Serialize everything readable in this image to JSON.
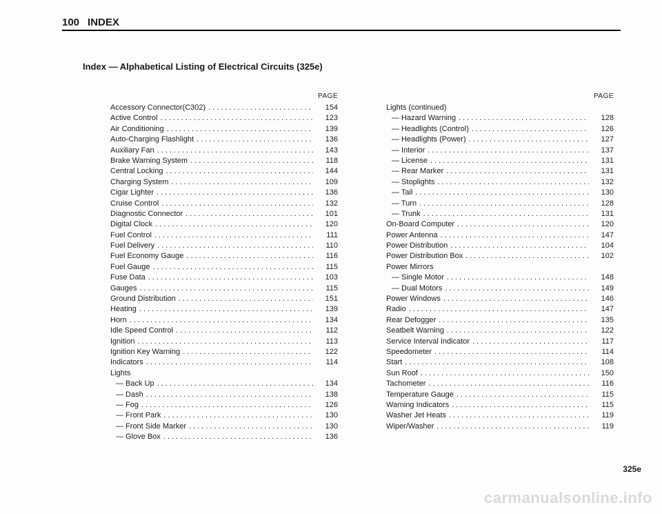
{
  "header": {
    "pageNumber": "100",
    "sectionTitle": "INDEX"
  },
  "subtitle": "Index — Alphabetical Listing of Electrical Circuits (325e)",
  "columnHeader": "PAGE",
  "leftColumn": [
    {
      "label": "Accessory Connector(C302)",
      "page": "154"
    },
    {
      "label": "Active Control",
      "page": "123"
    },
    {
      "label": "Air Conditioning",
      "page": "139"
    },
    {
      "label": "Auto-Charging Flashlight",
      "page": "136"
    },
    {
      "label": "Auxiliary Fan",
      "page": "143"
    },
    {
      "label": "Brake Warning System",
      "page": "118"
    },
    {
      "label": "Central Locking",
      "page": "144"
    },
    {
      "label": "Charging System",
      "page": "109"
    },
    {
      "label": "Cigar Lighter",
      "page": "136"
    },
    {
      "label": "Cruise Control",
      "page": "132"
    },
    {
      "label": "Diagnostic Connector",
      "page": "101"
    },
    {
      "label": "Digital Clock",
      "page": "120"
    },
    {
      "label": "Fuel Control",
      "page": "111"
    },
    {
      "label": "Fuel Delivery",
      "page": "110"
    },
    {
      "label": "Fuel Economy Gauge",
      "page": "116"
    },
    {
      "label": "Fuel Gauge",
      "page": "115"
    },
    {
      "label": "Fuse Data",
      "page": "103"
    },
    {
      "label": "Gauges",
      "page": "115"
    },
    {
      "label": "Ground Distribution",
      "page": "151"
    },
    {
      "label": "Heating",
      "page": "139"
    },
    {
      "label": "Horn",
      "page": "134"
    },
    {
      "label": "Idle Speed Control",
      "page": "112"
    },
    {
      "label": "Ignition",
      "page": "113"
    },
    {
      "label": "Ignition Key Warning",
      "page": "122"
    },
    {
      "label": "Indicators",
      "page": "114"
    },
    {
      "label": "Lights",
      "page": "",
      "noline": true
    },
    {
      "label": "— Back Up",
      "page": "134",
      "indent": true
    },
    {
      "label": "— Dash",
      "page": "138",
      "indent": true
    },
    {
      "label": "— Fog",
      "page": "126",
      "indent": true
    },
    {
      "label": "— Front Park",
      "page": "130",
      "indent": true
    },
    {
      "label": "— Front Side Marker",
      "page": "130",
      "indent": true
    },
    {
      "label": "— Glove Box",
      "page": "136",
      "indent": true
    }
  ],
  "rightColumn": [
    {
      "label": "Lights (continued)",
      "page": "",
      "noline": true
    },
    {
      "label": "— Hazard Warning",
      "page": "128",
      "indent": true
    },
    {
      "label": "— Headlights (Control)",
      "page": "126",
      "indent": true
    },
    {
      "label": "— Headlights (Power)",
      "page": "127",
      "indent": true
    },
    {
      "label": "— Interior",
      "page": "137",
      "indent": true
    },
    {
      "label": "— License",
      "page": "131",
      "indent": true
    },
    {
      "label": "— Rear Marker",
      "page": "131",
      "indent": true
    },
    {
      "label": "— Stoplights",
      "page": "132",
      "indent": true
    },
    {
      "label": "— Tail",
      "page": "130",
      "indent": true
    },
    {
      "label": "— Turn",
      "page": "128",
      "indent": true
    },
    {
      "label": "— Trunk",
      "page": "131",
      "indent": true
    },
    {
      "label": "On-Board Computer",
      "page": "120"
    },
    {
      "label": "Power Antenna",
      "page": "147"
    },
    {
      "label": "Power Distribution",
      "page": "104"
    },
    {
      "label": "Power Distribution Box",
      "page": "102"
    },
    {
      "label": "Power Mirrors",
      "page": "",
      "noline": true
    },
    {
      "label": "— Single Motor",
      "page": "148",
      "indent": true
    },
    {
      "label": "— Dual Motors",
      "page": "149",
      "indent": true
    },
    {
      "label": "Power Windows",
      "page": "146"
    },
    {
      "label": "Radio",
      "page": "147"
    },
    {
      "label": "Rear Defogger",
      "page": "135"
    },
    {
      "label": "Seatbelt Warning",
      "page": "122"
    },
    {
      "label": "Service Interval Indicator",
      "page": "117"
    },
    {
      "label": "Speedometer",
      "page": "114"
    },
    {
      "label": "Start",
      "page": "108"
    },
    {
      "label": "Sun Roof",
      "page": "150"
    },
    {
      "label": "Tachometer",
      "page": "116"
    },
    {
      "label": "Temperature Gauge",
      "page": "115"
    },
    {
      "label": "Warning Indicators",
      "page": "115"
    },
    {
      "label": "Washer Jet Heats",
      "page": "119"
    },
    {
      "label": "Wiper/Washer",
      "page": "119"
    }
  ],
  "footer": "325e",
  "watermark": "carmanualsonline.info"
}
